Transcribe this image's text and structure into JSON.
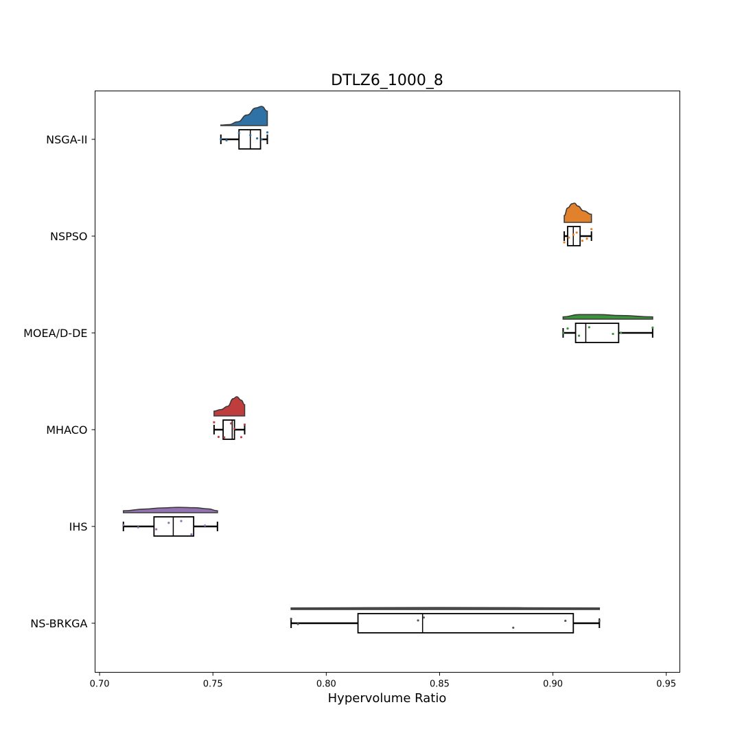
{
  "chart_data": {
    "type": "raincloud",
    "title": "DTLZ6_1000_8",
    "xlabel": "Hypervolume Ratio",
    "ylabel": "",
    "xlim": [
      0.698,
      0.956
    ],
    "xticks": [
      "0.70",
      "0.75",
      "0.80",
      "0.85",
      "0.90",
      "0.95"
    ],
    "grid": false,
    "series": [
      {
        "name": "NSGA-II",
        "color": "#2f73a6",
        "min": 0.7535,
        "q1": 0.7615,
        "median": 0.7665,
        "q3": 0.771,
        "max": 0.774,
        "points": [
          0.7535,
          0.756,
          0.7615,
          0.7665,
          0.7695,
          0.7715,
          0.774
        ],
        "density": [
          [
            0.7535,
            0.0
          ],
          [
            0.757,
            0.05
          ],
          [
            0.761,
            0.2
          ],
          [
            0.765,
            0.55
          ],
          [
            0.769,
            0.92
          ],
          [
            0.7715,
            1.0
          ],
          [
            0.774,
            0.75
          ]
        ]
      },
      {
        "name": "NSPSO",
        "color": "#e1812c",
        "min": 0.905,
        "q1": 0.9065,
        "median": 0.909,
        "q3": 0.912,
        "max": 0.917,
        "points": [
          0.905,
          0.907,
          0.909,
          0.9105,
          0.913,
          0.915,
          0.917
        ],
        "density": [
          [
            0.905,
            0.35
          ],
          [
            0.9065,
            0.75
          ],
          [
            0.9085,
            0.97
          ],
          [
            0.9095,
            1.0
          ],
          [
            0.911,
            0.85
          ],
          [
            0.9135,
            0.6
          ],
          [
            0.917,
            0.42
          ]
        ]
      },
      {
        "name": "MOEA/D-DE",
        "color": "#3a923a",
        "min": 0.9045,
        "q1": 0.91,
        "median": 0.9145,
        "q3": 0.929,
        "max": 0.944,
        "points": [
          0.9045,
          0.9065,
          0.9115,
          0.916,
          0.9265,
          0.93,
          0.944
        ],
        "density": [
          [
            0.9045,
            0.12
          ],
          [
            0.9115,
            0.24
          ],
          [
            0.92,
            0.24
          ],
          [
            0.93,
            0.19
          ],
          [
            0.944,
            0.12
          ]
        ]
      },
      {
        "name": "MHACO",
        "color": "#c03d3e",
        "min": 0.7505,
        "q1": 0.7545,
        "median": 0.7585,
        "q3": 0.7595,
        "max": 0.764,
        "points": [
          0.7505,
          0.7525,
          0.755,
          0.758,
          0.7595,
          0.7625,
          0.764
        ],
        "density": [
          [
            0.7505,
            0.25
          ],
          [
            0.7535,
            0.33
          ],
          [
            0.7565,
            0.5
          ],
          [
            0.759,
            0.9
          ],
          [
            0.7605,
            1.0
          ],
          [
            0.7625,
            0.82
          ],
          [
            0.764,
            0.58
          ]
        ]
      },
      {
        "name": "IHS",
        "color": "#9372b2",
        "min": 0.7105,
        "q1": 0.724,
        "median": 0.7325,
        "q3": 0.7415,
        "max": 0.752,
        "points": [
          0.7105,
          0.717,
          0.725,
          0.7305,
          0.736,
          0.7405,
          0.7465
        ],
        "density": [
          [
            0.7105,
            0.1
          ],
          [
            0.72,
            0.19
          ],
          [
            0.7275,
            0.25
          ],
          [
            0.735,
            0.28
          ],
          [
            0.742,
            0.26
          ],
          [
            0.748,
            0.2
          ],
          [
            0.752,
            0.1
          ]
        ]
      },
      {
        "name": "NS-BRKGA",
        "color": "#555555",
        "min": 0.7845,
        "q1": 0.814,
        "median": 0.8425,
        "q3": 0.909,
        "max": 0.9205,
        "points": [
          0.7845,
          0.7875,
          0.8405,
          0.843,
          0.8825,
          0.9055,
          0.9205
        ],
        "density": [
          [
            0.7845,
            0.08
          ],
          [
            0.85,
            0.1
          ],
          [
            0.9205,
            0.08
          ]
        ]
      }
    ]
  }
}
